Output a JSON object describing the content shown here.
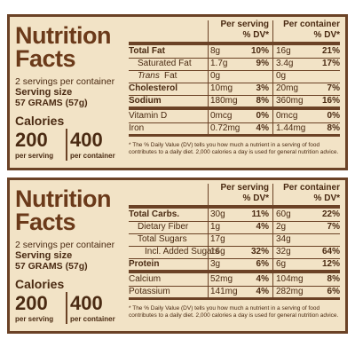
{
  "panels": [
    {
      "left": {
        "title": [
          "Nutrition",
          "Facts"
        ],
        "servings": "2 servings per container",
        "serving_size_label": "Serving size",
        "serving_size": "57 GRAMS (57g)",
        "calories_label": "Calories",
        "calories_per_serving": "200",
        "per_serving_label": "per serving",
        "calories_per_container": "400",
        "per_container_label": "per container"
      },
      "header": {
        "per_serving": "Per serving",
        "dv": "% DV*",
        "per_container": "Per container",
        "dv2": "% DV*"
      },
      "rows": [
        {
          "name": "Total Fat",
          "amount": "8g",
          "dv": "10%",
          "amount2": "16g",
          "dv2": "21%",
          "bold": true
        },
        {
          "name": "Saturated Fat",
          "amount": "1.7g",
          "dv": "9%",
          "amount2": "3.4g",
          "dv2": "17%",
          "indent": true
        },
        {
          "italic": "Trans",
          "name": "Fat",
          "amount": "0g",
          "amount2": "0g",
          "indent": true
        },
        {
          "name": "Cholesterol",
          "amount": "10mg",
          "dv": "3%",
          "amount2": "20mg",
          "dv2": "7%",
          "bold": true
        },
        {
          "name": "Sodium",
          "amount": "180mg",
          "dv": "8%",
          "amount2": "360mg",
          "dv2": "16%",
          "bold": true
        }
      ],
      "minerals": [
        {
          "name": "Vitamin D",
          "amount": "0mcg",
          "dv": "0%",
          "amount2": "0mcg",
          "dv2": "0%"
        },
        {
          "name": "Iron",
          "amount": "0.72mg",
          "dv": "4%",
          "amount2": "1.44mg",
          "dv2": "8%"
        }
      ],
      "footnote": "* The % Daily Value (DV) tells you how much a nutrient in a serving of food contributes to a daily diet. 2,000 calories a day is used for general nutrition advice."
    },
    {
      "left": {
        "title": [
          "Nutrition",
          "Facts"
        ],
        "servings": "2 servings per container",
        "serving_size_label": "Serving size",
        "serving_size": "57 GRAMS (57g)",
        "calories_label": "Calories",
        "calories_per_serving": "200",
        "per_serving_label": "per serving",
        "calories_per_container": "400",
        "per_container_label": "per container"
      },
      "header": {
        "per_serving": "Per serving",
        "dv": "% DV*",
        "per_container": "Per container",
        "dv2": "% DV*"
      },
      "rows": [
        {
          "name": "Total Carbs.",
          "amount": "30g",
          "dv": "11%",
          "amount2": "60g",
          "dv2": "22%",
          "bold": true
        },
        {
          "name": "Dietary Fiber",
          "amount": "1g",
          "dv": "4%",
          "amount2": "2g",
          "dv2": "7%",
          "indent": true
        },
        {
          "name": "Total Sugars",
          "amount": "17g",
          "amount2": "34g",
          "indent": true
        },
        {
          "name": "Incl. Added Sugars",
          "amount": "16g",
          "dv": "32%",
          "amount2": "32g",
          "dv2": "64%",
          "indent": true,
          "indent2": true
        },
        {
          "name": "Protein",
          "amount": "3g",
          "dv": "6%",
          "amount2": "6g",
          "dv2": "12%",
          "bold": true
        }
      ],
      "minerals": [
        {
          "name": "Calcium",
          "amount": "52mg",
          "dv": "4%",
          "amount2": "104mg",
          "dv2": "8%"
        },
        {
          "name": "Potassium",
          "amount": "141mg",
          "dv": "4%",
          "amount2": "282mg",
          "dv2": "6%"
        }
      ],
      "footnote": "* The % Daily Value (DV) tells you how much a nutrient in a serving of food contributes to a daily diet. 2,000 calories a day is used for general nutrition advice."
    }
  ]
}
